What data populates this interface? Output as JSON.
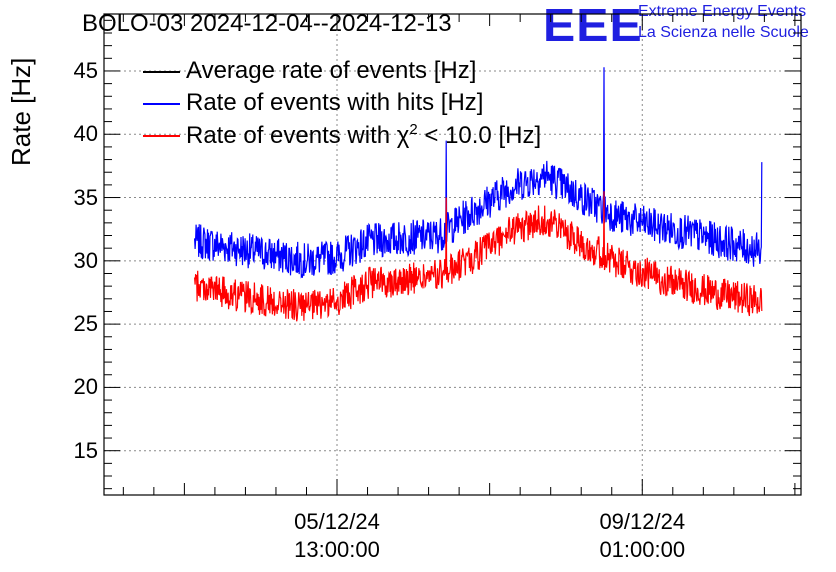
{
  "chart_data": {
    "type": "line",
    "title": "BOLO-03 2024-12-04--2024-12-13",
    "ylabel": "Rate [Hz]",
    "xlabel": "",
    "ylim": [
      11.5,
      49.5
    ],
    "yticks": [
      15,
      20,
      25,
      30,
      35,
      40,
      45
    ],
    "ytick_labels": [
      "15",
      "20",
      "25",
      "30",
      "35",
      "40",
      "45"
    ],
    "x_range_hours": [
      -45.8,
      91.2
    ],
    "xticks": [
      {
        "hours": 0,
        "date": "05/12/24",
        "time": "13:00:00"
      },
      {
        "hours": 60,
        "date": "09/12/24",
        "time": "01:00:00"
      }
    ],
    "legend_position": "top-left",
    "grid": true,
    "series": [
      {
        "name": "Average rate of events [Hz]",
        "color": "#000000",
        "values": []
      },
      {
        "name": "Rate of events with hits [Hz]",
        "color": "#0000ff",
        "x_hours": [
          -27,
          -20,
          -13,
          -6,
          0,
          6,
          13,
          20,
          27,
          34,
          41,
          48,
          55,
          62,
          69,
          76,
          83
        ],
        "values": [
          31.5,
          31.0,
          30.5,
          30.0,
          30.3,
          31.5,
          31.8,
          32.0,
          34.0,
          35.8,
          36.8,
          35.0,
          33.5,
          32.8,
          32.2,
          31.5,
          30.8
        ],
        "spikes": [
          {
            "hours": 21.5,
            "value": 39.5
          },
          {
            "hours": 52.5,
            "value": 45.3
          },
          {
            "hours": 83.5,
            "value": 37.8
          }
        ]
      },
      {
        "name": "Rate of events with χ2 < 10.0 [Hz]",
        "color": "#ff0000",
        "x_hours": [
          -27,
          -20,
          -13,
          -6,
          0,
          6,
          13,
          20,
          27,
          34,
          41,
          48,
          55,
          62,
          69,
          76,
          83
        ],
        "values": [
          28.0,
          27.3,
          26.8,
          26.3,
          26.8,
          28.2,
          28.5,
          28.8,
          30.3,
          32.3,
          33.3,
          31.5,
          29.8,
          28.8,
          28.0,
          27.3,
          26.8
        ],
        "spikes": [
          {
            "hours": 21.5,
            "value": 35.0
          },
          {
            "hours": 52.5,
            "value": 35.5
          }
        ]
      }
    ]
  },
  "legend": {
    "avg_label": "Average rate of events [Hz]",
    "hits_label": "Rate of events with hits [Hz]",
    "chi_label_prefix": "Rate of events with χ",
    "chi_label_sup": "2",
    "chi_label_suffix": " < 10.0 [Hz]"
  },
  "logo": {
    "text": "EEE",
    "line1": "Extreme Energy Events",
    "line2": "La Scienza nelle Scuole",
    "color": "#1f1fe0"
  }
}
